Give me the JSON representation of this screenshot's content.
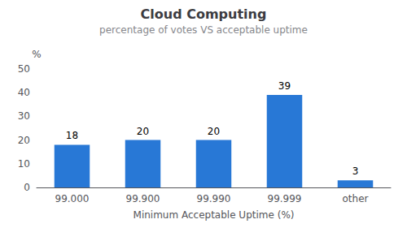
{
  "chart_data": {
    "type": "bar",
    "title": "Cloud Computing",
    "subtitle": "percentage of votes VS acceptable uptime",
    "categories": [
      "99.000",
      "99.900",
      "99.990",
      "99.999",
      "other"
    ],
    "values": [
      18,
      20,
      20,
      39,
      3
    ],
    "color": "#2878d6",
    "xlabel": "Minimum Acceptable Uptime (%)",
    "ylabel": "%",
    "ylim": [
      0,
      50
    ],
    "yticks": [
      0,
      10,
      20,
      30,
      40,
      50
    ],
    "grid": false,
    "data_labels": true
  }
}
